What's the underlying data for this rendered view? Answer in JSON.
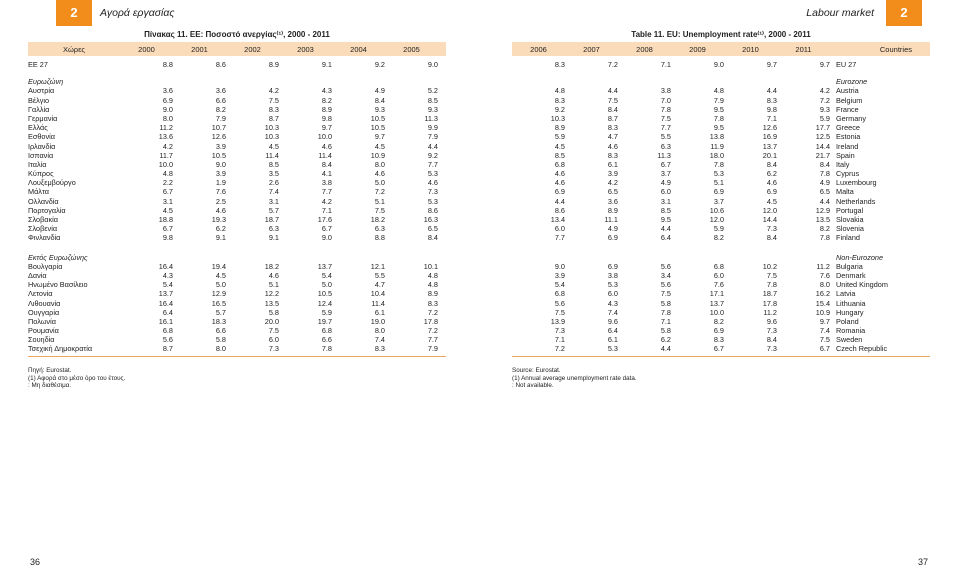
{
  "header": {
    "chapter_number_left": "2",
    "chapter_title_left": "Αγορά εργασίας",
    "chapter_title_right": "Labour market",
    "chapter_number_right": "2"
  },
  "left_table": {
    "title": "Πίνακας 11. ΕΕ: Ποσοστό ανεργίας⁽¹⁾, 2000 - 2011",
    "col_label": "Χώρες",
    "years": [
      "2000",
      "2001",
      "2002",
      "2003",
      "2004",
      "2005"
    ],
    "eu27": {
      "label": "ΕΕ 27",
      "values": [
        "8.8",
        "8.6",
        "8.9",
        "9.1",
        "9.2",
        "9.0"
      ]
    },
    "sections": [
      {
        "name": "Ευρωζώνη",
        "rows": [
          {
            "label": "Αυστρία",
            "values": [
              "3.6",
              "3.6",
              "4.2",
              "4.3",
              "4.9",
              "5.2"
            ]
          },
          {
            "label": "Βέλγιο",
            "values": [
              "6.9",
              "6.6",
              "7.5",
              "8.2",
              "8.4",
              "8.5"
            ]
          },
          {
            "label": "Γαλλία",
            "values": [
              "9.0",
              "8.2",
              "8.3",
              "8.9",
              "9.3",
              "9.3"
            ]
          },
          {
            "label": "Γερμανία",
            "values": [
              "8.0",
              "7.9",
              "8.7",
              "9.8",
              "10.5",
              "11.3"
            ]
          },
          {
            "label": "Ελλάς",
            "values": [
              "11.2",
              "10.7",
              "10.3",
              "9.7",
              "10.5",
              "9.9"
            ]
          },
          {
            "label": "Εσθονία",
            "values": [
              "13.6",
              "12.6",
              "10.3",
              "10.0",
              "9.7",
              "7.9"
            ]
          },
          {
            "label": "Ιρλανδία",
            "values": [
              "4.2",
              "3.9",
              "4.5",
              "4.6",
              "4.5",
              "4.4"
            ]
          },
          {
            "label": "Ισπανία",
            "values": [
              "11.7",
              "10.5",
              "11.4",
              "11.4",
              "10.9",
              "9.2"
            ]
          },
          {
            "label": "Ιταλία",
            "values": [
              "10.0",
              "9.0",
              "8.5",
              "8.4",
              "8.0",
              "7.7"
            ]
          },
          {
            "label": "Κύπρος",
            "values": [
              "4.8",
              "3.9",
              "3.5",
              "4.1",
              "4.6",
              "5.3"
            ]
          },
          {
            "label": "Λουξεμβούργο",
            "values": [
              "2.2",
              "1.9",
              "2.6",
              "3.8",
              "5.0",
              "4.6"
            ]
          },
          {
            "label": "Μάλτα",
            "values": [
              "6.7",
              "7.6",
              "7.4",
              "7.7",
              "7.2",
              "7.3"
            ]
          },
          {
            "label": "Ολλανδία",
            "values": [
              "3.1",
              "2.5",
              "3.1",
              "4.2",
              "5.1",
              "5.3"
            ]
          },
          {
            "label": "Πορτογαλία",
            "values": [
              "4.5",
              "4.6",
              "5.7",
              "7.1",
              "7.5",
              "8.6"
            ]
          },
          {
            "label": "Σλοβακία",
            "values": [
              "18.8",
              "19.3",
              "18.7",
              "17.6",
              "18.2",
              "16.3"
            ]
          },
          {
            "label": "Σλοβενία",
            "values": [
              "6.7",
              "6.2",
              "6.3",
              "6.7",
              "6.3",
              "6.5"
            ]
          },
          {
            "label": "Φινλανδία",
            "values": [
              "9.8",
              "9.1",
              "9.1",
              "9.0",
              "8.8",
              "8.4"
            ]
          }
        ]
      },
      {
        "name": "Εκτός Ευρωζώνης",
        "rows": [
          {
            "label": "Βουλγαρία",
            "values": [
              "16.4",
              "19.4",
              "18.2",
              "13.7",
              "12.1",
              "10.1"
            ]
          },
          {
            "label": "Δανία",
            "values": [
              "4.3",
              "4.5",
              "4.6",
              "5.4",
              "5.5",
              "4.8"
            ]
          },
          {
            "label": "Ηνωμένο Βασίλειο",
            "values": [
              "5.4",
              "5.0",
              "5.1",
              "5.0",
              "4.7",
              "4.8"
            ]
          },
          {
            "label": "Λετονία",
            "values": [
              "13.7",
              "12.9",
              "12.2",
              "10.5",
              "10.4",
              "8.9"
            ]
          },
          {
            "label": "Λιθουανία",
            "values": [
              "16.4",
              "16.5",
              "13.5",
              "12.4",
              "11.4",
              "8.3"
            ]
          },
          {
            "label": "Ουγγαρία",
            "values": [
              "6.4",
              "5.7",
              "5.8",
              "5.9",
              "6.1",
              "7.2"
            ]
          },
          {
            "label": "Πολωνία",
            "values": [
              "16.1",
              "18.3",
              "20.0",
              "19.7",
              "19.0",
              "17.8"
            ]
          },
          {
            "label": "Ρουμανία",
            "values": [
              "6.8",
              "6.6",
              "7.5",
              "6.8",
              "8.0",
              "7.2"
            ]
          },
          {
            "label": "Σουηδία",
            "values": [
              "5.6",
              "5.8",
              "6.0",
              "6.6",
              "7.4",
              "7.7"
            ]
          },
          {
            "label": "Τσεχική Δημοκρατία",
            "values": [
              "8.7",
              "8.0",
              "7.3",
              "7.8",
              "8.3",
              "7.9"
            ]
          }
        ]
      }
    ],
    "notes": [
      "Πηγή: Eurostat.",
      "(1) Αφορά στο μέσο όρο του έτους.",
      ": Μη διαθέσιμα."
    ]
  },
  "right_table": {
    "title": "Table 11. EU: Unemployment rate⁽¹⁾, 2000 - 2011",
    "col_label": "Countries",
    "years": [
      "2006",
      "2007",
      "2008",
      "2009",
      "2010",
      "2011"
    ],
    "eu27": {
      "label": "EU 27",
      "values": [
        "8.3",
        "7.2",
        "7.1",
        "9.0",
        "9.7",
        "9.7"
      ]
    },
    "sections": [
      {
        "name": "Eurozone",
        "rows": [
          {
            "label": "Austria",
            "values": [
              "4.8",
              "4.4",
              "3.8",
              "4.8",
              "4.4",
              "4.2"
            ]
          },
          {
            "label": "Belgium",
            "values": [
              "8.3",
              "7.5",
              "7.0",
              "7.9",
              "8.3",
              "7.2"
            ]
          },
          {
            "label": "France",
            "values": [
              "9.2",
              "8.4",
              "7.8",
              "9.5",
              "9.8",
              "9.3"
            ]
          },
          {
            "label": "Germany",
            "values": [
              "10.3",
              "8.7",
              "7.5",
              "7.8",
              "7.1",
              "5.9"
            ]
          },
          {
            "label": "Greece",
            "values": [
              "8.9",
              "8.3",
              "7.7",
              "9.5",
              "12.6",
              "17.7"
            ]
          },
          {
            "label": "Estonia",
            "values": [
              "5.9",
              "4.7",
              "5.5",
              "13.8",
              "16.9",
              "12.5"
            ]
          },
          {
            "label": "Ireland",
            "values": [
              "4.5",
              "4.6",
              "6.3",
              "11.9",
              "13.7",
              "14.4"
            ]
          },
          {
            "label": "Spain",
            "values": [
              "8.5",
              "8.3",
              "11.3",
              "18.0",
              "20.1",
              "21.7"
            ]
          },
          {
            "label": "Italy",
            "values": [
              "6.8",
              "6.1",
              "6.7",
              "7.8",
              "8.4",
              "8.4"
            ]
          },
          {
            "label": "Cyprus",
            "values": [
              "4.6",
              "3.9",
              "3.7",
              "5.3",
              "6.2",
              "7.8"
            ]
          },
          {
            "label": "Luxembourg",
            "values": [
              "4.6",
              "4.2",
              "4.9",
              "5.1",
              "4.6",
              "4.9"
            ]
          },
          {
            "label": "Malta",
            "values": [
              "6.9",
              "6.5",
              "6.0",
              "6.9",
              "6.9",
              "6.5"
            ]
          },
          {
            "label": "Netherlands",
            "values": [
              "4.4",
              "3.6",
              "3.1",
              "3.7",
              "4.5",
              "4.4"
            ]
          },
          {
            "label": "Portugal",
            "values": [
              "8.6",
              "8.9",
              "8.5",
              "10.6",
              "12.0",
              "12.9"
            ]
          },
          {
            "label": "Slovakia",
            "values": [
              "13.4",
              "11.1",
              "9.5",
              "12.0",
              "14.4",
              "13.5"
            ]
          },
          {
            "label": "Slovenia",
            "values": [
              "6.0",
              "4.9",
              "4.4",
              "5.9",
              "7.3",
              "8.2"
            ]
          },
          {
            "label": "Finland",
            "values": [
              "7.7",
              "6.9",
              "6.4",
              "8.2",
              "8.4",
              "7.8"
            ]
          }
        ]
      },
      {
        "name": "Non-Eurozone",
        "rows": [
          {
            "label": "Bulgaria",
            "values": [
              "9.0",
              "6.9",
              "5.6",
              "6.8",
              "10.2",
              "11.2"
            ]
          },
          {
            "label": "Denmark",
            "values": [
              "3.9",
              "3.8",
              "3.4",
              "6.0",
              "7.5",
              "7.6"
            ]
          },
          {
            "label": "United Kingdom",
            "values": [
              "5.4",
              "5.3",
              "5.6",
              "7.6",
              "7.8",
              "8.0"
            ]
          },
          {
            "label": "Latvia",
            "values": [
              "6.8",
              "6.0",
              "7.5",
              "17.1",
              "18.7",
              "16.2"
            ]
          },
          {
            "label": "Lithuania",
            "values": [
              "5.6",
              "4.3",
              "5.8",
              "13.7",
              "17.8",
              "15.4"
            ]
          },
          {
            "label": "Hungary",
            "values": [
              "7.5",
              "7.4",
              "7.8",
              "10.0",
              "11.2",
              "10.9"
            ]
          },
          {
            "label": "Poland",
            "values": [
              "13.9",
              "9.6",
              "7.1",
              "8.2",
              "9.6",
              "9.7"
            ]
          },
          {
            "label": "Romania",
            "values": [
              "7.3",
              "6.4",
              "5.8",
              "6.9",
              "7.3",
              "7.4"
            ]
          },
          {
            "label": "Sweden",
            "values": [
              "7.1",
              "6.1",
              "6.2",
              "8.3",
              "8.4",
              "7.5"
            ]
          },
          {
            "label": "Czech Republic",
            "values": [
              "7.2",
              "5.3",
              "4.4",
              "6.7",
              "7.3",
              "6.7"
            ]
          }
        ]
      }
    ],
    "notes": [
      "Source: Eurostat.",
      "(1) Annual average unemployment rate data.",
      ": Not available."
    ]
  },
  "footer": {
    "page_left": "36",
    "page_right": "37"
  },
  "colors": {
    "accent": "#f28c1b",
    "header_band": "#fbdcba",
    "rule": "#f0a860"
  }
}
